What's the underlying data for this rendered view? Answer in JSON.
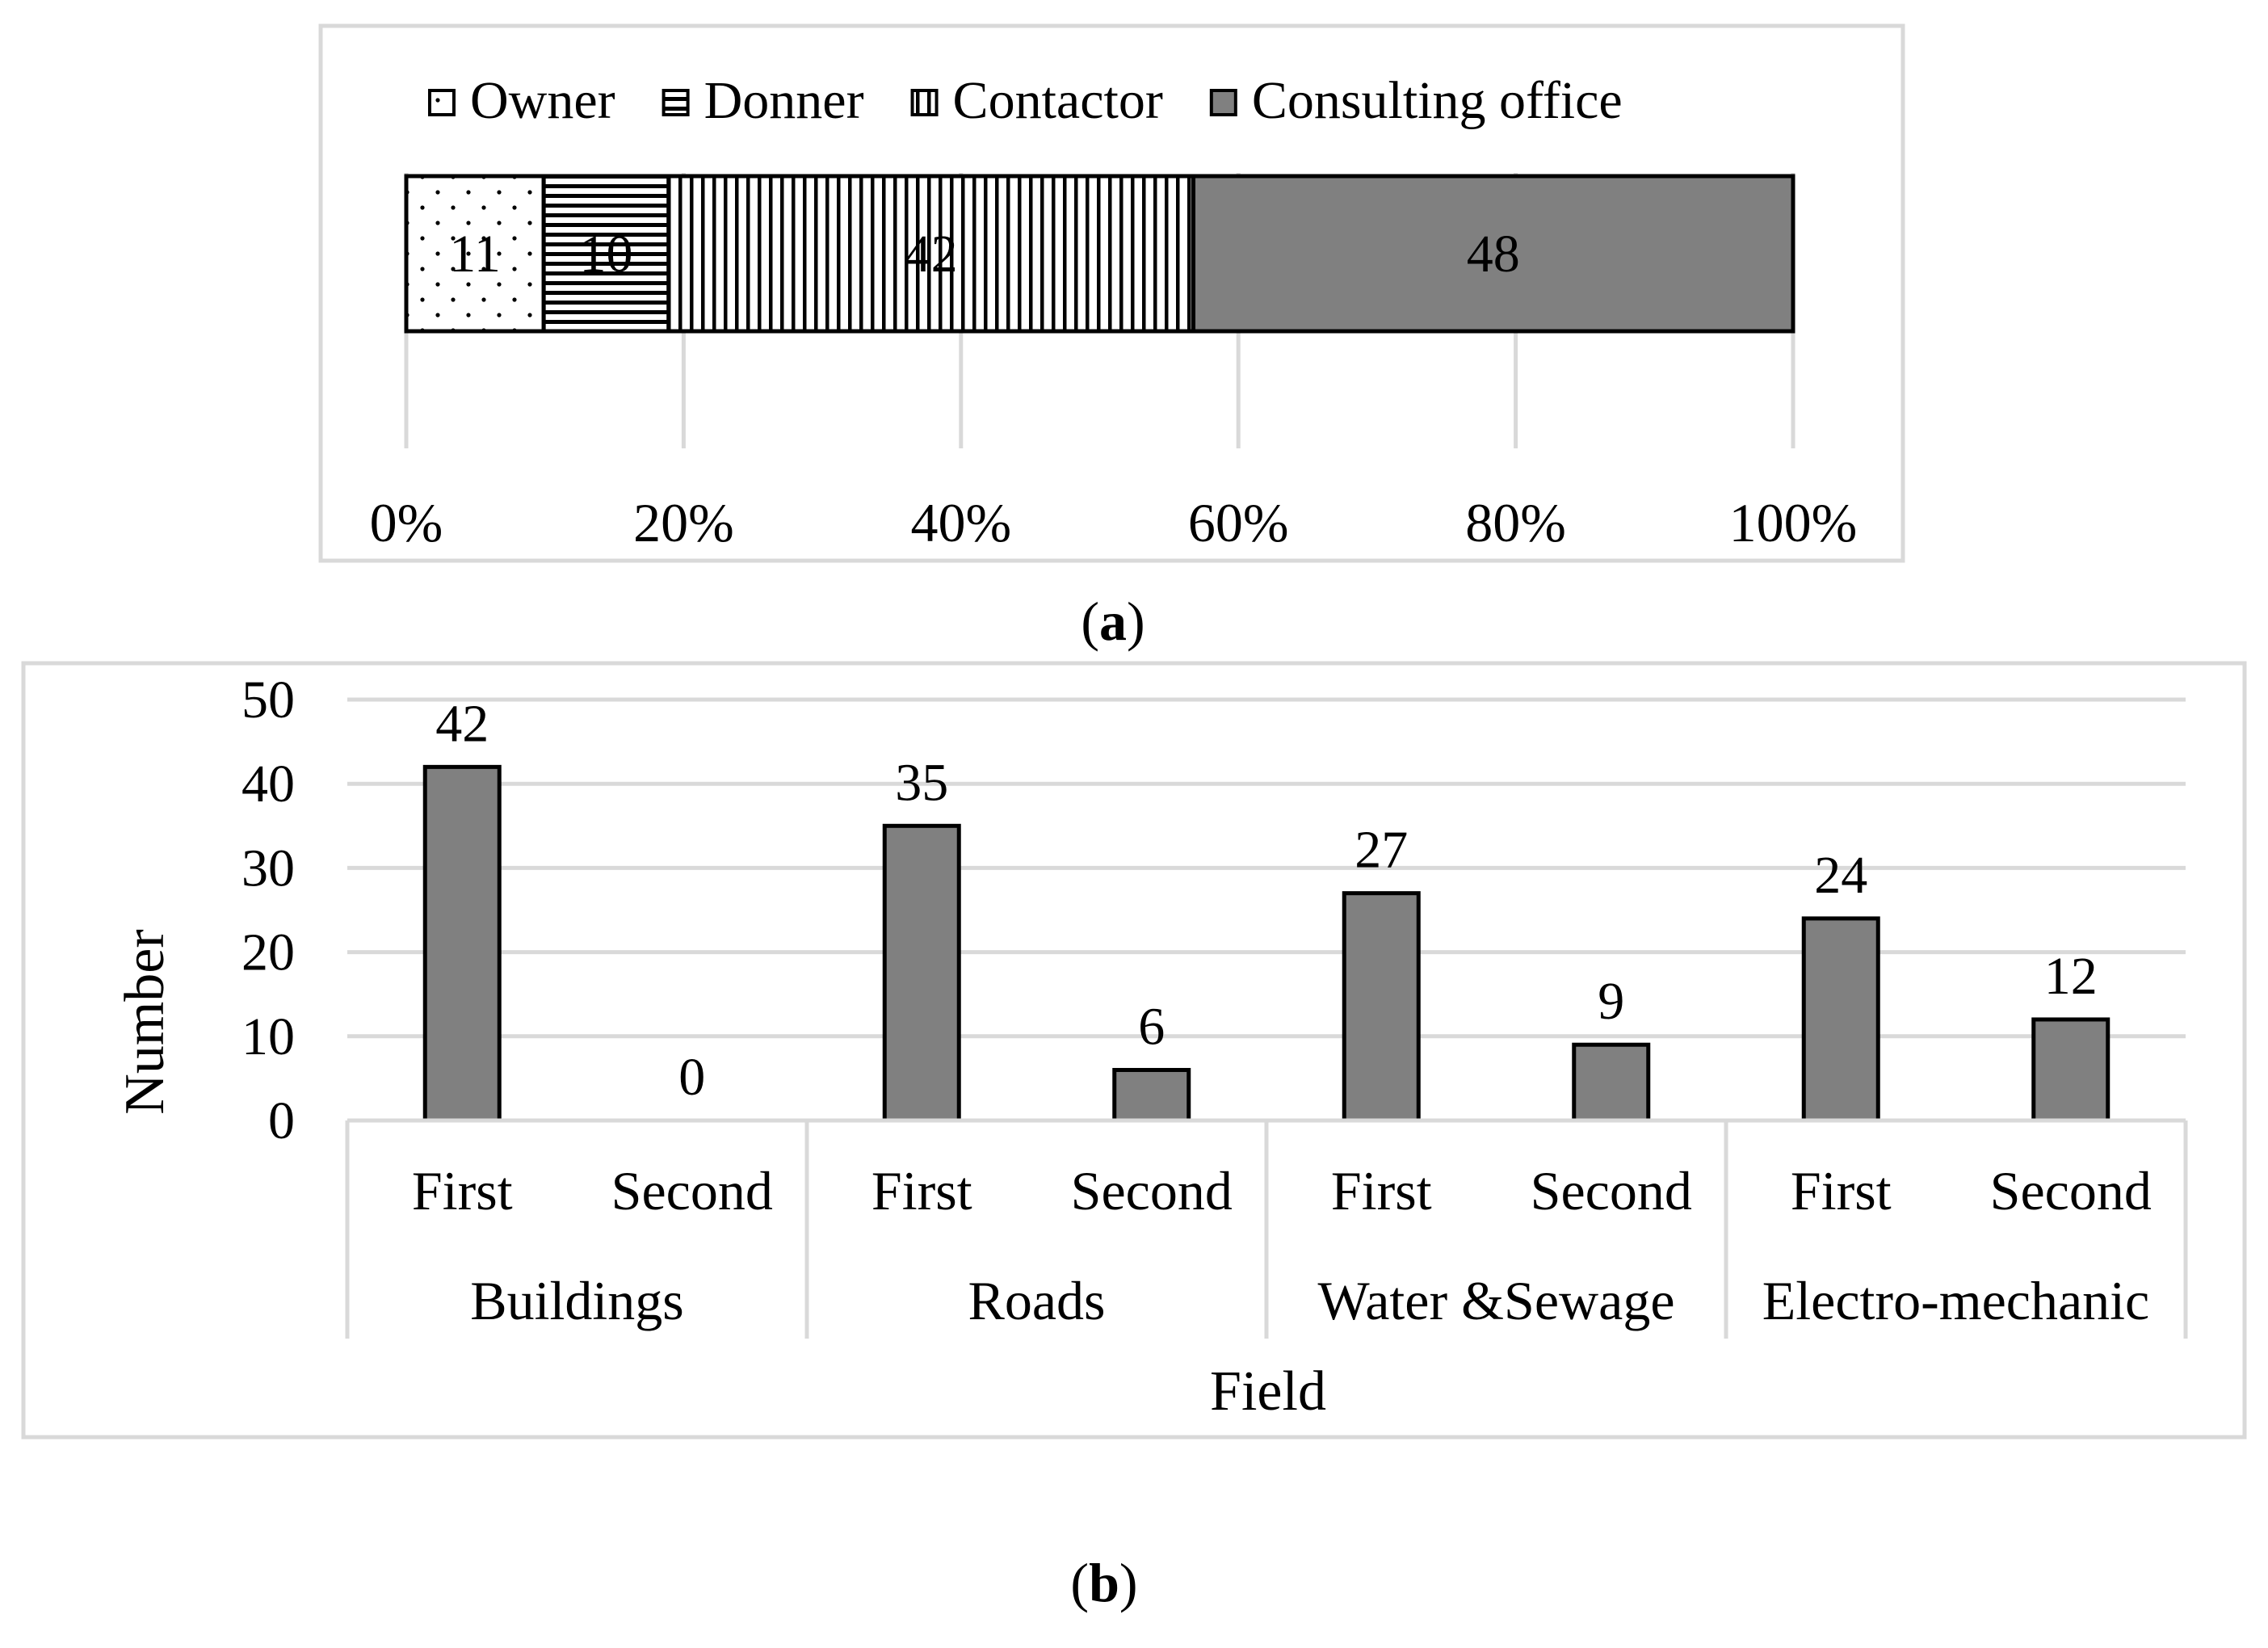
{
  "chart_data": [
    {
      "type": "bar",
      "orientation": "horizontal",
      "stacked": "percent",
      "panel_label": "a",
      "categories": [
        ""
      ],
      "series": [
        {
          "name": "Owner",
          "values": [
            11
          ],
          "pattern": "dotted"
        },
        {
          "name": "Donner",
          "values": [
            10
          ],
          "pattern": "horizontal-lines"
        },
        {
          "name": "Contactor",
          "values": [
            42
          ],
          "pattern": "vertical-lines"
        },
        {
          "name": "Consulting office",
          "values": [
            48
          ],
          "pattern": "solid-gray"
        }
      ],
      "xticks": [
        "0%",
        "20%",
        "40%",
        "60%",
        "80%",
        "100%"
      ],
      "xlim": [
        0,
        100
      ],
      "legend_position": "top",
      "grid": true,
      "title": "",
      "xlabel": "",
      "ylabel": ""
    },
    {
      "type": "bar",
      "panel_label": "b",
      "groups": [
        {
          "name": "Buildings",
          "categories": [
            "First",
            "Second"
          ],
          "values": [
            42,
            0
          ]
        },
        {
          "name": "Roads",
          "categories": [
            "First",
            "Second"
          ],
          "values": [
            35,
            6
          ]
        },
        {
          "name": "Water &Sewage",
          "categories": [
            "First",
            "Second"
          ],
          "values": [
            27,
            9
          ]
        },
        {
          "name": "Electro-mechanic",
          "categories": [
            "First",
            "Second"
          ],
          "values": [
            24,
            12
          ]
        }
      ],
      "yticks": [
        "0",
        "10",
        "20",
        "30",
        "40",
        "50"
      ],
      "ylim": [
        0,
        50
      ],
      "xlabel": "Field",
      "ylabel": "Number",
      "title": "",
      "grid": true,
      "bar_color": "#808080"
    }
  ],
  "colors": {
    "bar_gray": "#808080",
    "grid": "#d9d9d9",
    "frame": "#d9d9d9",
    "outline": "#000000"
  }
}
